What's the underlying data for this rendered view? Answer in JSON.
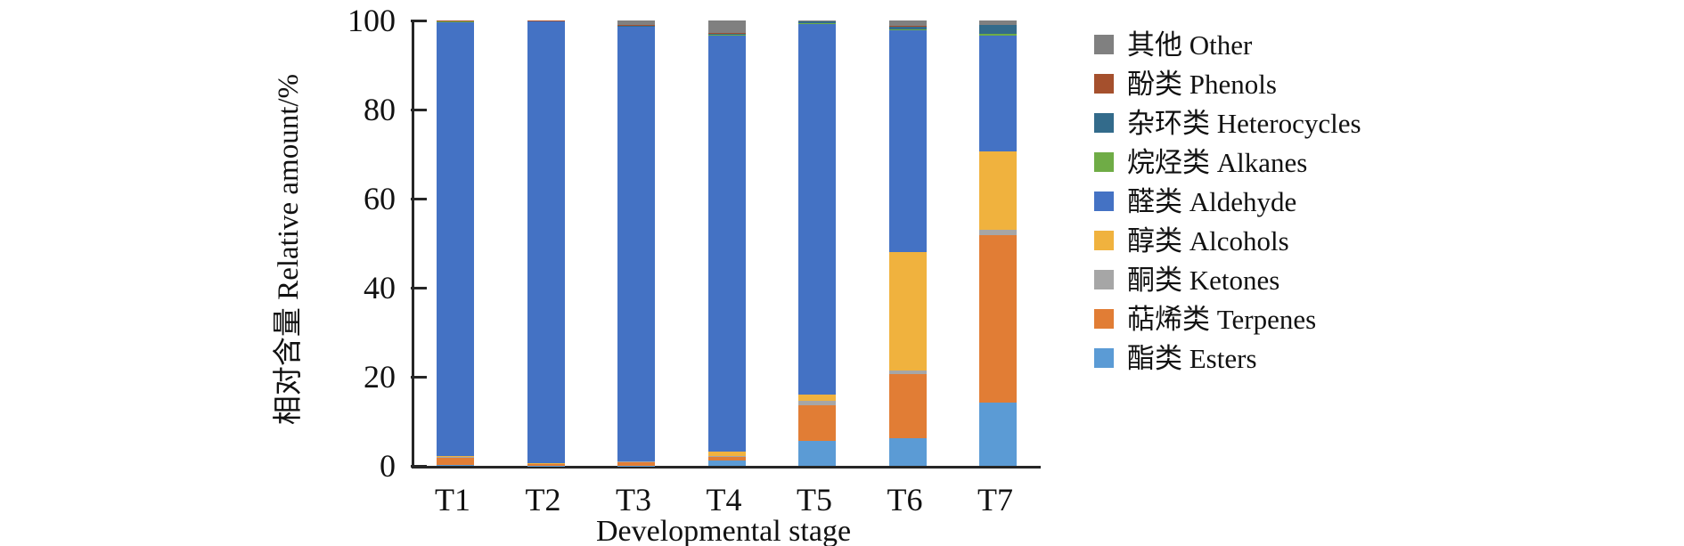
{
  "figure": {
    "x_axis_title": "Developmental stage",
    "y_axis_title": "相对含量 Relative amount/%"
  },
  "chart_data": {
    "type": "bar",
    "subtype": "stacked-vertical",
    "categories": [
      "T1",
      "T2",
      "T3",
      "T4",
      "T5",
      "T6",
      "T7"
    ],
    "ylim": [
      0,
      100
    ],
    "yticks": [
      0,
      20,
      40,
      60,
      80,
      100
    ],
    "grid": false,
    "legend_position": "right",
    "xlabel": "Developmental stage",
    "ylabel": "相对含量 Relative amount/%",
    "stacking_order_note": "series listed bottom-to-top of stack; legend displays reverse order",
    "series": [
      {
        "name": "酯类 Esters",
        "color": "#5B9BD5",
        "values": [
          0.2,
          0.1,
          0.1,
          1.2,
          5.6,
          6.3,
          14.2
        ]
      },
      {
        "name": "萜烯类 Terpenes",
        "color": "#E17D35",
        "values": [
          1.6,
          0.3,
          0.8,
          0.8,
          8.1,
          14.4,
          37.6
        ]
      },
      {
        "name": "酮类 Ketones",
        "color": "#A6A6A6",
        "values": [
          0.2,
          0.1,
          0.1,
          0.2,
          0.9,
          0.7,
          1.2
        ]
      },
      {
        "name": "醇类 Alcohols",
        "color": "#F0B23E",
        "values": [
          0.2,
          0.1,
          0.1,
          1.0,
          1.5,
          26.6,
          17.6
        ]
      },
      {
        "name": "醛类 Aldehyde",
        "color": "#4472C4",
        "values": [
          97.5,
          99.2,
          97.5,
          93.5,
          83.2,
          49.8,
          26.0
        ]
      },
      {
        "name": "烷烃类 Alkanes",
        "color": "#6FAC46",
        "values": [
          0.1,
          0.05,
          0.1,
          0.1,
          0.1,
          0.2,
          0.4
        ]
      },
      {
        "name": "杂环类 Heterocycles",
        "color": "#336B8B",
        "values": [
          0.1,
          0.05,
          0.1,
          0.2,
          0.4,
          0.6,
          2.0
        ]
      },
      {
        "name": "酚类 Phenols",
        "color": "#A5502D",
        "values": [
          0.05,
          0.05,
          0.2,
          0.2,
          0.1,
          0.2,
          0.1
        ]
      },
      {
        "name": "其他 Other",
        "color": "#808080",
        "values": [
          0.05,
          0.05,
          1.0,
          2.8,
          0.1,
          1.2,
          0.9
        ]
      }
    ]
  }
}
